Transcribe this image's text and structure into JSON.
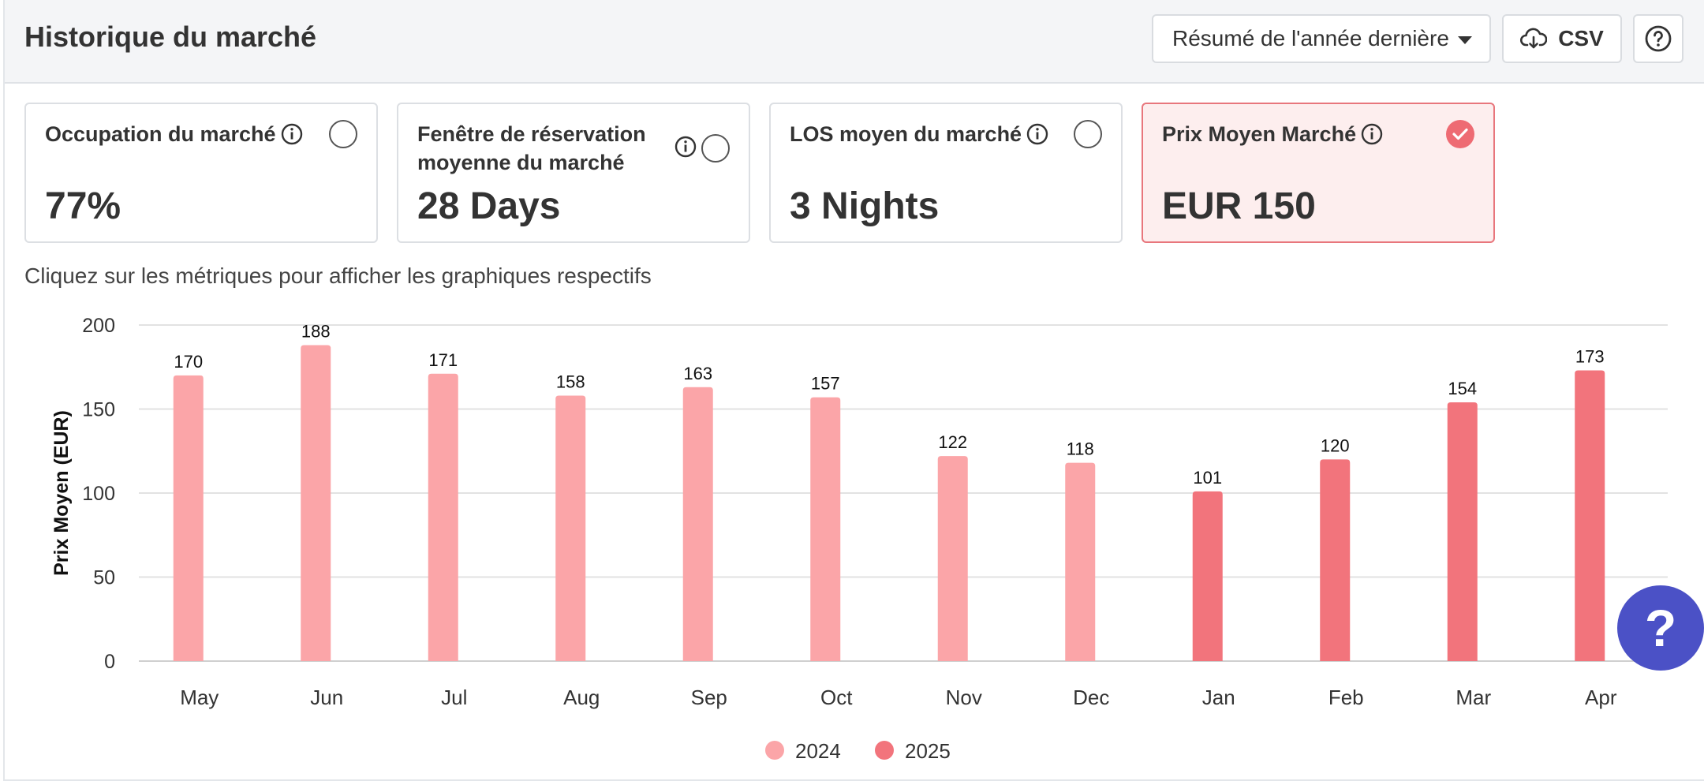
{
  "header": {
    "title": "Historique du marché",
    "period_select": "Résumé de l'année dernière",
    "csv_label": "CSV"
  },
  "metrics": [
    {
      "label_line1": "Occupation du marché",
      "label_line2": "",
      "value": "77%",
      "selected": false
    },
    {
      "label_line1": "Fenêtre de réservation",
      "label_line2": "moyenne du marché",
      "value": "28 Days",
      "selected": false
    },
    {
      "label_line1": "LOS moyen du marché",
      "label_line2": "",
      "value": "3 Nights",
      "selected": false
    },
    {
      "label_line1": "Prix Moyen Marché",
      "label_line2": "",
      "value": "EUR 150",
      "selected": true
    }
  ],
  "hint": "Cliquez sur les métriques pour afficher les graphiques respectifs",
  "colors": {
    "series_2024": "#fba5a8",
    "series_2025": "#f2747c",
    "accent": "#ee6b73",
    "help_fab": "#4b51c6"
  },
  "help_fab_label": "?",
  "chart_data": {
    "type": "bar",
    "categories": [
      "May",
      "Jun",
      "Jul",
      "Aug",
      "Sep",
      "Oct",
      "Nov",
      "Dec",
      "Jan",
      "Feb",
      "Mar",
      "Apr"
    ],
    "values": [
      170,
      188,
      171,
      158,
      163,
      157,
      122,
      118,
      101,
      120,
      154,
      173
    ],
    "year": [
      "2024",
      "2024",
      "2024",
      "2024",
      "2024",
      "2024",
      "2024",
      "2024",
      "2025",
      "2025",
      "2025",
      "2025"
    ],
    "series": [
      {
        "name": "2024"
      },
      {
        "name": "2025"
      }
    ],
    "ylabel": "Prix Moyen (EUR)",
    "yticks": [
      0,
      50,
      100,
      150,
      200
    ],
    "ylim": [
      0,
      200
    ],
    "grid": true,
    "legend": "bottom-center"
  }
}
